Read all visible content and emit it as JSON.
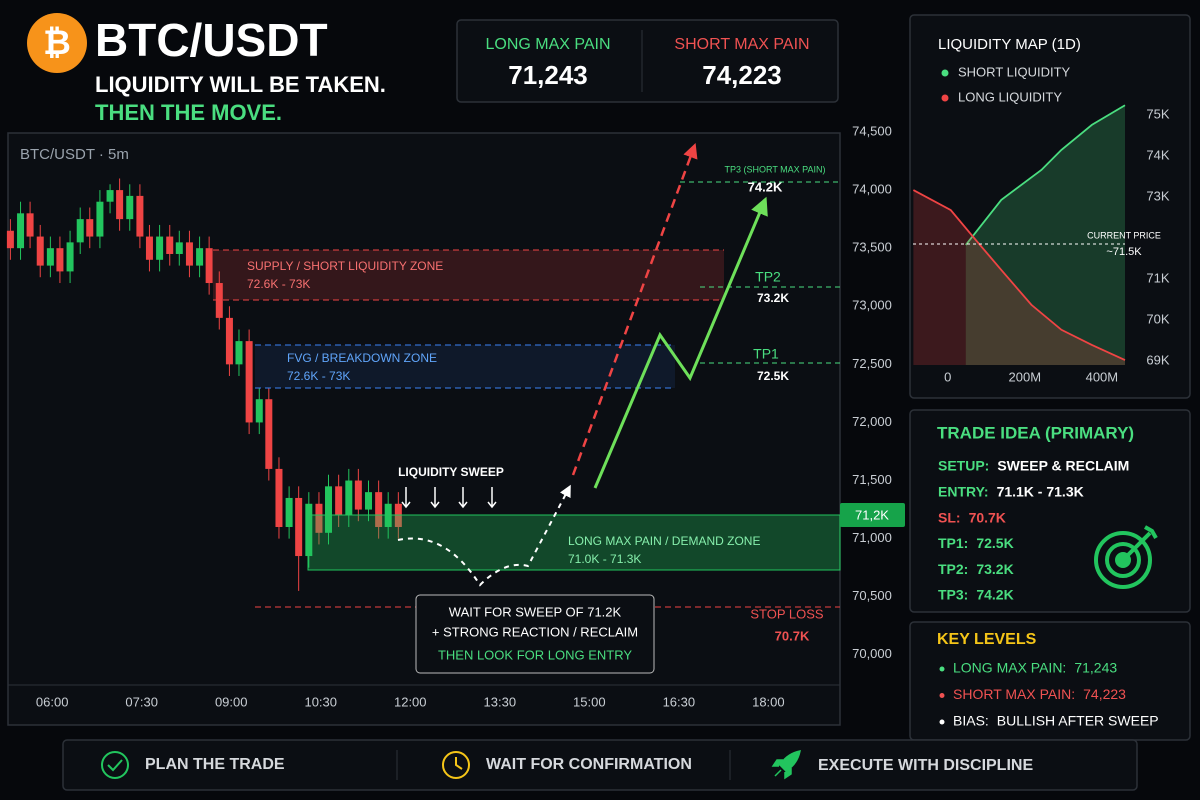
{
  "header": {
    "logo": "₿",
    "symbol": "BTC/USDT",
    "tagline_1": "LIQUIDITY WILL BE TAKEN.",
    "tagline_2": "THEN THE MOVE."
  },
  "max_pain": [
    {
      "label": "LONG MAX PAIN",
      "value": "71,243"
    },
    {
      "label": "SHORT MAX PAIN",
      "value": "74,223"
    }
  ],
  "chart_data": [
    {
      "type": "candlestick",
      "title": "BTC/USDT · 5m",
      "up_color": "#22c55e",
      "down_color": "#ef4444",
      "x": [
        5.3,
        5.47,
        5.63,
        5.8,
        5.97,
        6.13,
        6.3,
        6.47,
        6.63,
        6.8,
        6.97,
        7.13,
        7.3,
        7.47,
        7.63,
        7.8,
        7.97,
        8.13,
        8.3,
        8.47,
        8.63,
        8.8,
        8.97,
        9.13,
        9.3,
        9.47,
        9.63,
        9.8,
        9.97,
        10.13,
        10.3,
        10.47,
        10.63,
        10.8,
        10.97,
        11.13,
        11.3,
        11.47,
        11.63,
        11.8
      ],
      "open": [
        73650,
        73500,
        73800,
        73600,
        73350,
        73500,
        73300,
        73550,
        73750,
        73600,
        73900,
        74000,
        73750,
        73950,
        73600,
        73400,
        73600,
        73450,
        73550,
        73350,
        73500,
        73200,
        72900,
        72500,
        72700,
        72000,
        72200,
        71600,
        71100,
        71350,
        70850,
        71300,
        71050,
        71450,
        71200,
        71500,
        71250,
        71400,
        71100,
        71300
      ],
      "high": [
        73750,
        73900,
        73900,
        73700,
        73600,
        73600,
        73650,
        73850,
        73850,
        74000,
        74050,
        74100,
        74050,
        74050,
        73700,
        73700,
        73700,
        73650,
        73650,
        73600,
        73600,
        73300,
        73000,
        72800,
        72800,
        72300,
        72300,
        71700,
        71450,
        71450,
        71400,
        71400,
        71550,
        71550,
        71600,
        71600,
        71500,
        71500,
        71400,
        71400
      ],
      "low": [
        73400,
        73400,
        73500,
        73250,
        73250,
        73200,
        73200,
        73450,
        73500,
        73500,
        73800,
        73650,
        73650,
        73500,
        73300,
        73300,
        73350,
        73350,
        73250,
        73250,
        73100,
        72800,
        72400,
        72400,
        71900,
        71900,
        71500,
        71000,
        71000,
        70550,
        70750,
        70950,
        70950,
        71100,
        71100,
        71150,
        71150,
        71000,
        71000,
        71000
      ],
      "close": [
        73500,
        73800,
        73600,
        73350,
        73500,
        73300,
        73550,
        73750,
        73600,
        73900,
        74000,
        73750,
        73950,
        73600,
        73400,
        73600,
        73450,
        73550,
        73350,
        73500,
        73200,
        72900,
        72500,
        72700,
        72000,
        72200,
        71600,
        71100,
        71350,
        70850,
        71300,
        71050,
        71450,
        71200,
        71500,
        71250,
        71400,
        71100,
        71300,
        71100
      ],
      "xlim": [
        5.26,
        19.2
      ],
      "xticks": [
        {
          "value": 6,
          "label": "06:00"
        },
        {
          "value": 7.5,
          "label": "07:30"
        },
        {
          "value": 9,
          "label": "09:00"
        },
        {
          "value": 10.5,
          "label": "10:30"
        },
        {
          "value": 12,
          "label": "12:00"
        },
        {
          "value": 13.5,
          "label": "13:30"
        },
        {
          "value": 15,
          "label": "15:00"
        },
        {
          "value": 16.5,
          "label": "16:30"
        },
        {
          "value": 18,
          "label": "18:00"
        }
      ],
      "ylim": [
        69740,
        74500
      ],
      "yticks": [
        {
          "value": 70000,
          "label": "70,000"
        },
        {
          "value": 70500,
          "label": "70,500"
        },
        {
          "value": 71000,
          "label": "71,000"
        },
        {
          "value": 71500,
          "label": "71,500"
        },
        {
          "value": 72000,
          "label": "72,000"
        },
        {
          "value": 72500,
          "label": "72,500"
        },
        {
          "value": 73000,
          "label": "73,000"
        },
        {
          "value": 73500,
          "label": "73,500"
        },
        {
          "value": 74000,
          "label": "74,000"
        },
        {
          "value": 74500,
          "label": "74,500"
        }
      ],
      "current_price_label": "71,2K",
      "annotations": {
        "supply": "SUPPLY / SHORT LIQUIDITY ZONE",
        "supply_range": "72.6K - 73K",
        "fvg": "FVG  / BREAKDOWN ZONE",
        "fvg_range": "72.6K - 73K",
        "sweep": "LIQUIDITY SWEEP",
        "demand": "LONG MAX PAIN / DEMAND ZONE",
        "demand_range": "71.0K - 71.3K",
        "tp3": "TP3 (SHORT MAX PAIN)",
        "tp3_value": "74.2K",
        "tp2": "TP2",
        "tp2_value": "73.2K",
        "tp1": "TP1",
        "tp1_value": "72.5K",
        "stop": "STOP LOSS",
        "stop_value": "70.7K",
        "wait_1": "WAIT FOR SWEEP OF 71.2K",
        "wait_2": "+ STRONG REACTION / RECLAIM",
        "wait_3": "THEN LOOK FOR LONG ENTRY"
      }
    },
    {
      "type": "area",
      "title": "LIQUIDITY MAP (1D)",
      "series": [
        {
          "name": "SHORT LIQUIDITY",
          "color": "#4ade80",
          "x": [
            47,
            139,
            243,
            295,
            374,
            460
          ],
          "values": [
            71.83,
            72.93,
            73.66,
            74.15,
            74.76,
            75.24
          ]
        },
        {
          "name": "LONG LIQUIDITY",
          "color": "#ef4444",
          "x": [
            -89,
            8,
            73,
            139,
            217,
            295,
            374,
            460
          ],
          "values": [
            73.17,
            72.68,
            71.95,
            71.22,
            70.37,
            69.76,
            69.39,
            69.02
          ]
        }
      ],
      "xlim": [
        -90,
        460
      ],
      "xticks": [
        0,
        {
          "value": 200,
          "label": "200M"
        },
        {
          "value": 400,
          "label": "400M"
        }
      ],
      "ylim": [
        68.9,
        75.49
      ],
      "yticks": [
        {
          "value": 75,
          "label": "75K"
        },
        {
          "value": 74,
          "label": "74K"
        },
        {
          "value": 73,
          "label": "73K"
        },
        {
          "value": 71,
          "label": "71K"
        },
        {
          "value": 70,
          "label": "70K"
        },
        {
          "value": 69,
          "label": "69K"
        }
      ],
      "current_price": "CURRENT PRICE",
      "current_price_value": "~71.5K"
    }
  ],
  "trade_idea": {
    "title": "TRADE IDEA (PRIMARY)",
    "rows": [
      {
        "label": "SETUP:",
        "value": "SWEEP & RECLAIM"
      },
      {
        "label": "ENTRY:",
        "value": "71.1K - 71.3K"
      },
      {
        "label": "SL:",
        "value": "70.7K"
      },
      {
        "label": "TP1:",
        "value": "72.5K"
      },
      {
        "label": "TP2:",
        "value": "73.2K"
      },
      {
        "label": "TP3:",
        "value": "74.2K"
      }
    ]
  },
  "key_levels": {
    "title": "KEY LEVELS",
    "rows": [
      {
        "label": "LONG MAX PAIN:",
        "value": "71,243"
      },
      {
        "label": "SHORT MAX PAIN:",
        "value": "74,223"
      },
      {
        "label": "BIAS:",
        "value": "BULLISH AFTER SWEEP"
      }
    ]
  },
  "footer": [
    "PLAN THE TRADE",
    "WAIT FOR CONFIRMATION",
    "EXECUTE WITH DISCIPLINE"
  ]
}
